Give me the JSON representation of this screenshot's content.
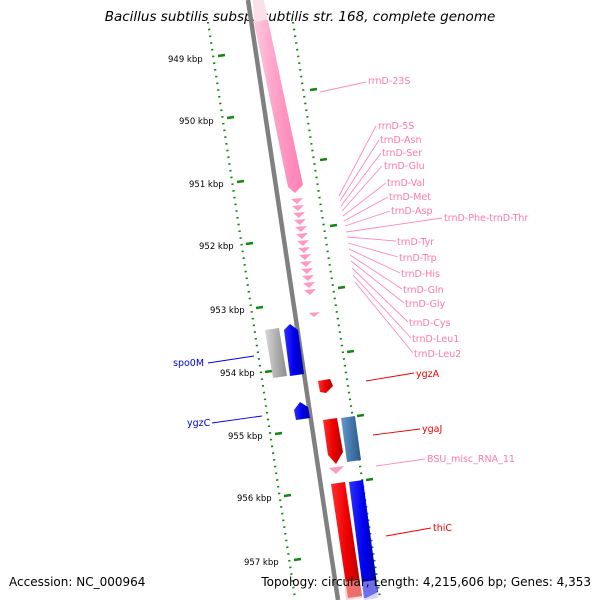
{
  "title": "Bacillus subtilis subsp. subtilis str. 168, complete genome",
  "accession": "Accession: NC_000964",
  "summary": "Topology: circular; Length: 4,215,606 bp; Genes: 4,353",
  "colors": {
    "rna": "#ff88bb",
    "forward_gene": "#0000ee",
    "reverse_gene": "#ee0000",
    "pseudo_gene": "#aaaaaa",
    "misc_gene": "#4477aa",
    "tick": "#118811",
    "backbone": "#808080"
  },
  "ticks": [
    "949 kbp",
    "950 kbp",
    "951 kbp",
    "952 kbp",
    "953 kbp",
    "954 kbp",
    "955 kbp",
    "956 kbp",
    "957 kbp"
  ],
  "labels": {
    "rrnD23S": "rrnD-23S",
    "rrnD5S": "rrnD-5S",
    "asn": "trnD-Asn",
    "ser": "trnD-Ser",
    "glu": "trnD-Glu",
    "val": "trnD-Val",
    "met": "trnD-Met",
    "asp": "trnD-Asp",
    "phe_thr": "trnD-Phe-trnD-Thr",
    "tyr": "trnD-Tyr",
    "trp": "trnD-Trp",
    "his": "trnD-His",
    "gln": "trnD-Gln",
    "gly": "trnD-Gly",
    "cys": "trnD-Cys",
    "leu1": "trnD-Leu1",
    "leu2": "trnD-Leu2",
    "ygzA": "ygzA",
    "ygaJ": "ygaJ",
    "bsu_misc": "BSU_misc_RNA_11",
    "thiC": "thiC",
    "spo0M": "spo0M",
    "ygzC": "ygzC"
  }
}
